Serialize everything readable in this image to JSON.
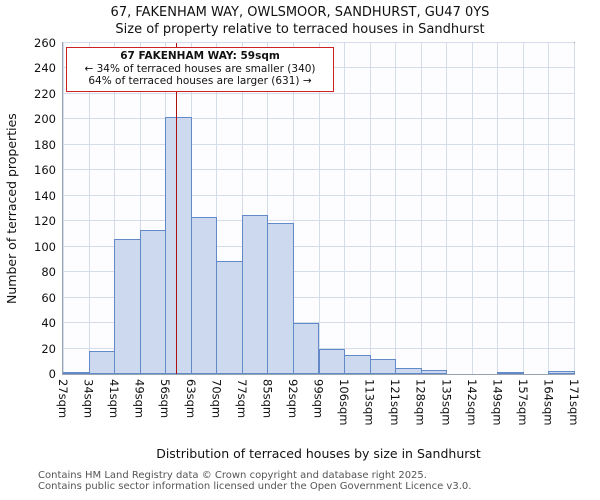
{
  "title": {
    "line1": "67, FAKENHAM WAY, OWLSMOOR, SANDHURST, GU47 0YS",
    "line2": "Size of property relative to terraced houses in Sandhurst"
  },
  "y_axis_label": "Number of terraced properties",
  "x_axis_label": "Distribution of terraced houses by size in Sandhurst",
  "annotation": {
    "line1": "67 FAKENHAM WAY: 59sqm",
    "line2": "← 34% of terraced houses are smaller (340)",
    "line3": "64% of terraced houses are larger (631) →"
  },
  "footer": {
    "line1": "Contains HM Land Registry data © Crown copyright and database right 2025.",
    "line2": "Contains public sector information licensed under the Open Government Licence v3.0."
  },
  "colors": {
    "bar_fill": "#ccd9ee",
    "bar_stroke": "#6289c8",
    "grid": "#d4dcea",
    "marker": "#aa1111",
    "annotation_border": "#cc2222"
  },
  "chart_data": {
    "type": "bar",
    "title": "Size of property relative to terraced houses in Sandhurst",
    "xlabel": "Distribution of terraced houses by size in Sandhurst",
    "ylabel": "Number of terraced properties",
    "x_unit": "sqm",
    "bin_edges": [
      27,
      34,
      41,
      49,
      56,
      63,
      70,
      77,
      85,
      92,
      99,
      106,
      113,
      121,
      128,
      135,
      142,
      149,
      157,
      164,
      171
    ],
    "values": [
      1,
      18,
      106,
      113,
      202,
      123,
      89,
      125,
      119,
      40,
      20,
      15,
      12,
      5,
      3,
      0,
      0,
      1,
      0,
      2
    ],
    "ylim": [
      0,
      260
    ],
    "ytick_step": 20,
    "grid": true,
    "legend": false,
    "marker": {
      "label": "67 FAKENHAM WAY",
      "value": 59,
      "unit": "sqm"
    }
  }
}
